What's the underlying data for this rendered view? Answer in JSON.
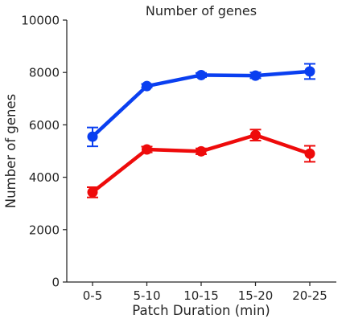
{
  "chart_data": {
    "type": "line",
    "title": "Number of genes",
    "xlabel": "Patch Duration (min)",
    "ylabel": "Number of genes",
    "categories": [
      "0-5",
      "5-10",
      "10-15",
      "15-20",
      "20-25"
    ],
    "ylim": [
      0,
      10000
    ],
    "yticks": [
      0,
      2000,
      4000,
      6000,
      8000,
      10000
    ],
    "grid": false,
    "series": [
      {
        "color": "#0a3ff0",
        "values": [
          5550,
          7480,
          7900,
          7880,
          8040
        ],
        "err_low": [
          5180,
          7430,
          7820,
          7780,
          7750
        ],
        "err_high": [
          5900,
          7560,
          7980,
          8000,
          8330
        ]
      },
      {
        "color": "#ee0b0b",
        "values": [
          3430,
          5060,
          4990,
          5610,
          4900
        ],
        "err_low": [
          3230,
          4950,
          4880,
          5400,
          4590
        ],
        "err_high": [
          3620,
          5170,
          5100,
          5820,
          5200
        ]
      }
    ]
  }
}
